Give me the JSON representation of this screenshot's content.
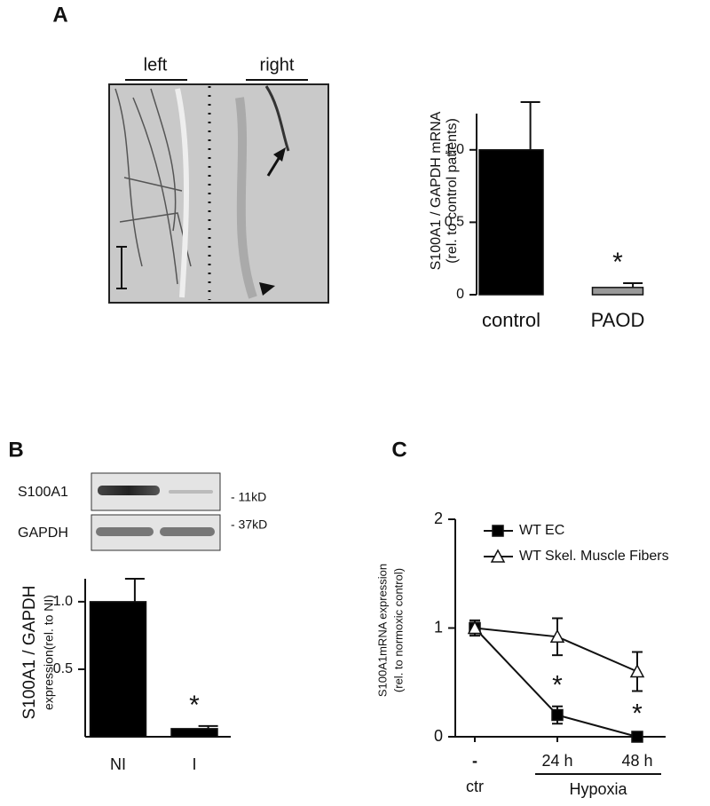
{
  "chart_data": [
    {
      "type": "bar",
      "panel": "A",
      "image_labels": [
        "left",
        "right"
      ],
      "categories": [
        "control",
        "PAOD"
      ],
      "values": [
        1.0,
        0.05
      ],
      "errors": [
        0.33,
        0.03
      ],
      "colors": [
        "#000000",
        "#999999"
      ],
      "y_label": [
        "S100A1 / GAPDH mRNA",
        "(rel. to control patients)"
      ],
      "ylim": [
        0,
        1.25
      ],
      "yticks": [
        0,
        0.5,
        {
          "value": 1,
          "label": "1.0"
        }
      ],
      "annotations": [
        "*"
      ]
    },
    {
      "type": "bar",
      "panel": "B",
      "image_labels": [
        "S100A1",
        "GAPDH",
        "- 11kD",
        "- 37kD"
      ],
      "categories": [
        "NI",
        "I"
      ],
      "values": [
        1.0,
        0.06
      ],
      "errors": [
        0.17,
        0.02
      ],
      "colors": [
        "#000000",
        "#000000"
      ],
      "y_label": [
        "S100A1 / GAPDH",
        "expression(rel. to NI)"
      ],
      "ylim": [
        0,
        1.17
      ],
      "yticks": [
        0.5,
        {
          "value": 1,
          "label": "1.0"
        }
      ],
      "annotations": [
        "*"
      ]
    },
    {
      "type": "line",
      "panel": "C",
      "categories": [
        "-",
        "24 h",
        "48 h"
      ],
      "group_labels": [
        "ctr",
        "Hypoxia"
      ],
      "series": [
        {
          "name": "WT EC",
          "color": "#000000",
          "marker": "square",
          "values": [
            1.0,
            0.2,
            0.0
          ],
          "errors": [
            0.07,
            0.08,
            0.02
          ]
        },
        {
          "name": "WT Skel. Muscle Fibers",
          "color": "#ffffff",
          "marker": "triangle",
          "values": [
            1.0,
            0.92,
            0.6
          ],
          "errors": [
            0.05,
            0.17,
            0.18
          ]
        }
      ],
      "y_label": [
        "S100A1mRNA  expression",
        "(rel. to normoxic control)"
      ],
      "ylim": [
        0,
        2
      ],
      "yticks": [
        0,
        1,
        2
      ],
      "annotations": [
        "*",
        "*"
      ]
    }
  ]
}
